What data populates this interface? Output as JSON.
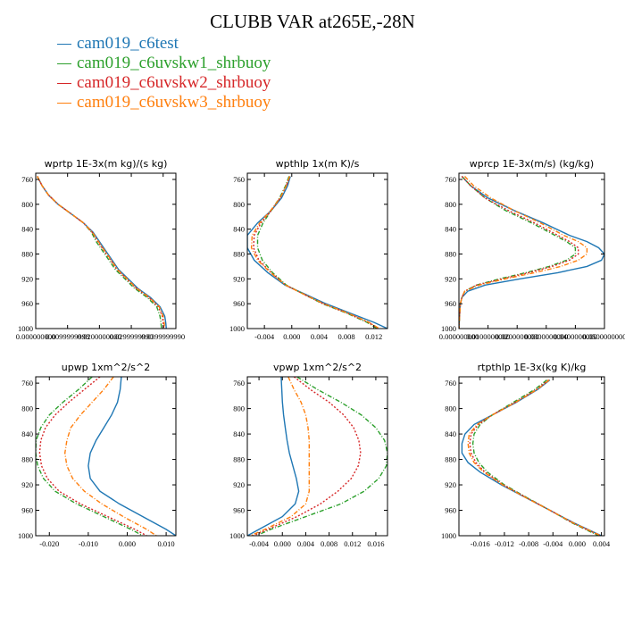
{
  "title": "CLUBB VAR at265E,-28N",
  "legend": [
    {
      "label": "cam019_c6test",
      "color": "#1f77b4"
    },
    {
      "label": "cam019_c6uvskw1_shrbuoy",
      "color": "#2ca02c"
    },
    {
      "label": "cam019_c6uvskw2_shrbuoy",
      "color": "#d62728"
    },
    {
      "label": "cam019_c6uvskw3_shrbuoy",
      "color": "#ff7f0e"
    }
  ],
  "chart_data": [
    {
      "type": "line",
      "title": "wprtp  1E-3x(m kg)/(s kg)",
      "xlim": [
        0.0,
        0.044
      ],
      "ylim": [
        1000,
        750
      ],
      "xticks": [
        0.0,
        0.01,
        0.02,
        0.03,
        0.04
      ],
      "xtick_labels": [
        "0.000000000",
        "0.0099999998",
        "0.0200000000",
        "0.0299999990",
        "0.0399999990"
      ],
      "yticks": [
        760,
        800,
        840,
        880,
        920,
        960,
        1000
      ],
      "y": [
        755,
        770,
        785,
        800,
        815,
        830,
        845,
        860,
        875,
        890,
        905,
        920,
        935,
        950,
        965,
        980,
        990,
        1000
      ],
      "series": [
        {
          "name": "cam019_c6test",
          "x": [
            0.0005,
            0.002,
            0.004,
            0.007,
            0.011,
            0.015,
            0.018,
            0.02,
            0.022,
            0.024,
            0.026,
            0.029,
            0.032,
            0.036,
            0.039,
            0.0405,
            0.0408,
            0.041
          ]
        },
        {
          "name": "cam019_c6uvskw1_shrbuoy",
          "x": [
            0.0005,
            0.002,
            0.004,
            0.007,
            0.011,
            0.015,
            0.0175,
            0.019,
            0.021,
            0.023,
            0.025,
            0.028,
            0.031,
            0.035,
            0.038,
            0.039,
            0.0393,
            0.0395
          ]
        },
        {
          "name": "cam019_c6uvskw2_shrbuoy",
          "x": [
            0.0005,
            0.002,
            0.004,
            0.007,
            0.011,
            0.015,
            0.0177,
            0.0195,
            0.0215,
            0.0235,
            0.0255,
            0.0285,
            0.0315,
            0.0355,
            0.0385,
            0.0397,
            0.04,
            0.0402
          ]
        },
        {
          "name": "cam019_c6uvskw3_shrbuoy",
          "x": [
            0.0005,
            0.002,
            0.004,
            0.007,
            0.011,
            0.015,
            0.0178,
            0.0197,
            0.0217,
            0.0237,
            0.0257,
            0.0287,
            0.0317,
            0.0357,
            0.0388,
            0.04,
            0.0403,
            0.0405
          ]
        }
      ]
    },
    {
      "type": "line",
      "title": "wpthlp  1x(m K)/s",
      "xlim": [
        -0.0065,
        0.014
      ],
      "ylim": [
        1000,
        750
      ],
      "xticks": [
        -0.004,
        0.0,
        0.004,
        0.008,
        0.012
      ],
      "xtick_labels": [
        "-0.004",
        "0.000",
        "0.004",
        "0.008",
        "0.012"
      ],
      "yticks": [
        760,
        800,
        840,
        880,
        920,
        960,
        1000
      ],
      "y": [
        755,
        770,
        790,
        810,
        830,
        850,
        870,
        890,
        910,
        930,
        945,
        960,
        975,
        990,
        1000
      ],
      "series": [
        {
          "name": "cam019_c6test",
          "x": [
            -0.0002,
            -0.0006,
            -0.0015,
            -0.003,
            -0.005,
            -0.0065,
            -0.0065,
            -0.0055,
            -0.0035,
            -0.001,
            0.002,
            0.005,
            0.0085,
            0.012,
            0.014
          ]
        },
        {
          "name": "cam019_c6uvskw1_shrbuoy",
          "x": [
            -0.0004,
            -0.0009,
            -0.0018,
            -0.003,
            -0.0042,
            -0.005,
            -0.005,
            -0.0043,
            -0.0028,
            -0.0008,
            0.0018,
            0.0045,
            0.008,
            0.011,
            0.0125
          ]
        },
        {
          "name": "cam019_c6uvskw2_shrbuoy",
          "x": [
            -0.0003,
            -0.0008,
            -0.0017,
            -0.003,
            -0.0045,
            -0.0055,
            -0.0056,
            -0.0048,
            -0.003,
            -0.0009,
            0.0018,
            0.0046,
            0.0081,
            0.0112,
            0.0127
          ]
        },
        {
          "name": "cam019_c6uvskw3_shrbuoy",
          "x": [
            -0.0003,
            -0.0008,
            -0.0017,
            -0.0031,
            -0.0047,
            -0.0058,
            -0.0059,
            -0.005,
            -0.0031,
            -0.0009,
            0.0018,
            0.0047,
            0.0082,
            0.0113,
            0.0128
          ]
        }
      ]
    },
    {
      "type": "line",
      "title": "wprcp  1E-3x(m/s) (kg/kg)",
      "xlim": [
        0.0,
        0.05
      ],
      "ylim": [
        1000,
        750
      ],
      "xticks": [
        0.0,
        0.01,
        0.02,
        0.03,
        0.04,
        0.05
      ],
      "xtick_labels": [
        "0.000000000",
        "0.0100000000",
        "0.0200000000",
        "0.0300000000",
        "0.0400000000",
        "0.0500000000"
      ],
      "yticks": [
        760,
        800,
        840,
        880,
        920,
        960,
        1000
      ],
      "y": [
        755,
        770,
        790,
        810,
        830,
        850,
        860,
        870,
        880,
        890,
        900,
        910,
        920,
        930,
        940,
        950,
        960,
        980,
        1000
      ],
      "series": [
        {
          "name": "cam019_c6test",
          "x": [
            0.001,
            0.004,
            0.01,
            0.019,
            0.029,
            0.038,
            0.044,
            0.048,
            0.05,
            0.049,
            0.044,
            0.034,
            0.021,
            0.009,
            0.003,
            0.001,
            0.0005,
            0.0002,
            0.0
          ]
        },
        {
          "name": "cam019_c6uvskw1_shrbuoy",
          "x": [
            0.001,
            0.004,
            0.009,
            0.016,
            0.025,
            0.033,
            0.037,
            0.04,
            0.04,
            0.037,
            0.031,
            0.023,
            0.014,
            0.006,
            0.002,
            0.001,
            0.0005,
            0.0002,
            0.0
          ]
        },
        {
          "name": "cam019_c6uvskw2_shrbuoy",
          "x": [
            0.001,
            0.004,
            0.009,
            0.017,
            0.026,
            0.034,
            0.038,
            0.041,
            0.041,
            0.038,
            0.032,
            0.024,
            0.015,
            0.006,
            0.002,
            0.001,
            0.0005,
            0.0002,
            0.0
          ]
        },
        {
          "name": "cam019_c6uvskw3_shrbuoy",
          "x": [
            0.002,
            0.005,
            0.011,
            0.019,
            0.028,
            0.036,
            0.041,
            0.044,
            0.044,
            0.041,
            0.035,
            0.026,
            0.016,
            0.007,
            0.002,
            0.001,
            0.0005,
            0.0002,
            0.0
          ]
        }
      ]
    },
    {
      "type": "line",
      "title": "upwp  1xm^2/s^2",
      "xlim": [
        -0.0235,
        0.0125
      ],
      "ylim": [
        1000,
        750
      ],
      "xticks": [
        -0.02,
        -0.01,
        0.0,
        0.01
      ],
      "xtick_labels": [
        "-0.020",
        "-0.010",
        "0.000",
        "0.010"
      ],
      "yticks": [
        760,
        800,
        840,
        880,
        920,
        960,
        1000
      ],
      "y": [
        750,
        770,
        790,
        810,
        830,
        850,
        870,
        890,
        910,
        930,
        950,
        970,
        990,
        1000
      ],
      "series": [
        {
          "name": "cam019_c6test",
          "x": [
            -0.0015,
            -0.0018,
            -0.0025,
            -0.004,
            -0.006,
            -0.008,
            -0.0095,
            -0.01,
            -0.0095,
            -0.007,
            -0.002,
            0.004,
            0.01,
            0.0125
          ]
        },
        {
          "name": "cam019_c6uvskw1_shrbuoy",
          "x": [
            -0.009,
            -0.0125,
            -0.0165,
            -0.02,
            -0.0222,
            -0.0234,
            -0.0235,
            -0.023,
            -0.0215,
            -0.0185,
            -0.013,
            -0.006,
            0.001,
            0.004
          ]
        },
        {
          "name": "cam019_c6uvskw2_shrbuoy",
          "x": [
            -0.007,
            -0.011,
            -0.015,
            -0.0185,
            -0.021,
            -0.0222,
            -0.0225,
            -0.022,
            -0.0205,
            -0.0175,
            -0.012,
            -0.005,
            0.002,
            0.005
          ]
        },
        {
          "name": "cam019_c6uvskw3_shrbuoy",
          "x": [
            -0.0035,
            -0.006,
            -0.009,
            -0.012,
            -0.0145,
            -0.0155,
            -0.016,
            -0.0155,
            -0.014,
            -0.011,
            -0.0065,
            -0.001,
            0.005,
            0.0075
          ]
        }
      ]
    },
    {
      "type": "line",
      "title": "vpwp  1xm^2/s^2",
      "xlim": [
        -0.006,
        0.018
      ],
      "ylim": [
        1000,
        750
      ],
      "xticks": [
        -0.004,
        0.0,
        0.004,
        0.008,
        0.012,
        0.016
      ],
      "xtick_labels": [
        "-0.004",
        "0.000",
        "0.004",
        "0.008",
        "0.012",
        "0.016"
      ],
      "yticks": [
        760,
        800,
        840,
        880,
        920,
        960,
        1000
      ],
      "y": [
        750,
        770,
        790,
        810,
        830,
        850,
        870,
        890,
        910,
        930,
        950,
        970,
        990,
        1000
      ],
      "series": [
        {
          "name": "cam019_c6test",
          "x": [
            -0.0002,
            -0.0001,
            0.0,
            0.0002,
            0.0005,
            0.0008,
            0.0012,
            0.0018,
            0.0024,
            0.0028,
            0.0022,
            0.0,
            -0.004,
            -0.006
          ]
        },
        {
          "name": "cam019_c6uvskw1_shrbuoy",
          "x": [
            0.0025,
            0.006,
            0.01,
            0.0135,
            0.016,
            0.0175,
            0.018,
            0.0178,
            0.0165,
            0.014,
            0.01,
            0.004,
            -0.002,
            -0.0045
          ]
        },
        {
          "name": "cam019_c6uvskw2_shrbuoy",
          "x": [
            0.002,
            0.0048,
            0.008,
            0.0105,
            0.0122,
            0.0131,
            0.0134,
            0.013,
            0.0118,
            0.0095,
            0.0065,
            0.0025,
            -0.0025,
            -0.005
          ]
        },
        {
          "name": "cam019_c6uvskw3_shrbuoy",
          "x": [
            0.001,
            0.002,
            0.0032,
            0.004,
            0.0044,
            0.0046,
            0.0046,
            0.0046,
            0.0046,
            0.0046,
            0.004,
            0.0015,
            -0.003,
            -0.0055
          ]
        }
      ]
    },
    {
      "type": "line",
      "title": "rtpthlp  1E-3x(kg K)/kg",
      "xlim": [
        -0.0195,
        0.0045
      ],
      "ylim": [
        1000,
        750
      ],
      "xticks": [
        -0.016,
        -0.012,
        -0.008,
        -0.004,
        0.0,
        0.004
      ],
      "xtick_labels": [
        "-0.016",
        "-0.012",
        "-0.008",
        "-0.004",
        "0.000",
        "0.004"
      ],
      "yticks": [
        760,
        800,
        840,
        880,
        920,
        960,
        1000
      ],
      "y": [
        755,
        770,
        790,
        810,
        825,
        840,
        855,
        870,
        885,
        900,
        920,
        940,
        960,
        980,
        1000
      ],
      "series": [
        {
          "name": "cam019_c6test",
          "x": [
            -0.0045,
            -0.0065,
            -0.01,
            -0.014,
            -0.017,
            -0.0185,
            -0.019,
            -0.019,
            -0.018,
            -0.016,
            -0.0125,
            -0.0085,
            -0.0045,
            -0.0005,
            0.004
          ]
        },
        {
          "name": "cam019_c6uvskw1_shrbuoy",
          "x": [
            -0.005,
            -0.007,
            -0.0105,
            -0.014,
            -0.016,
            -0.017,
            -0.0172,
            -0.017,
            -0.0162,
            -0.0148,
            -0.012,
            -0.0083,
            -0.0045,
            -0.0008,
            0.0035
          ]
        },
        {
          "name": "cam019_c6uvskw2_shrbuoy",
          "x": [
            -0.0047,
            -0.0067,
            -0.0102,
            -0.014,
            -0.0163,
            -0.0175,
            -0.0177,
            -0.0175,
            -0.0167,
            -0.0152,
            -0.0122,
            -0.0084,
            -0.0045,
            -0.0007,
            0.0038
          ]
        },
        {
          "name": "cam019_c6uvskw3_shrbuoy",
          "x": [
            -0.0046,
            -0.0066,
            -0.0101,
            -0.014,
            -0.0165,
            -0.0178,
            -0.018,
            -0.0178,
            -0.017,
            -0.0154,
            -0.0123,
            -0.0085,
            -0.0045,
            -0.0006,
            0.0039
          ]
        }
      ]
    }
  ]
}
